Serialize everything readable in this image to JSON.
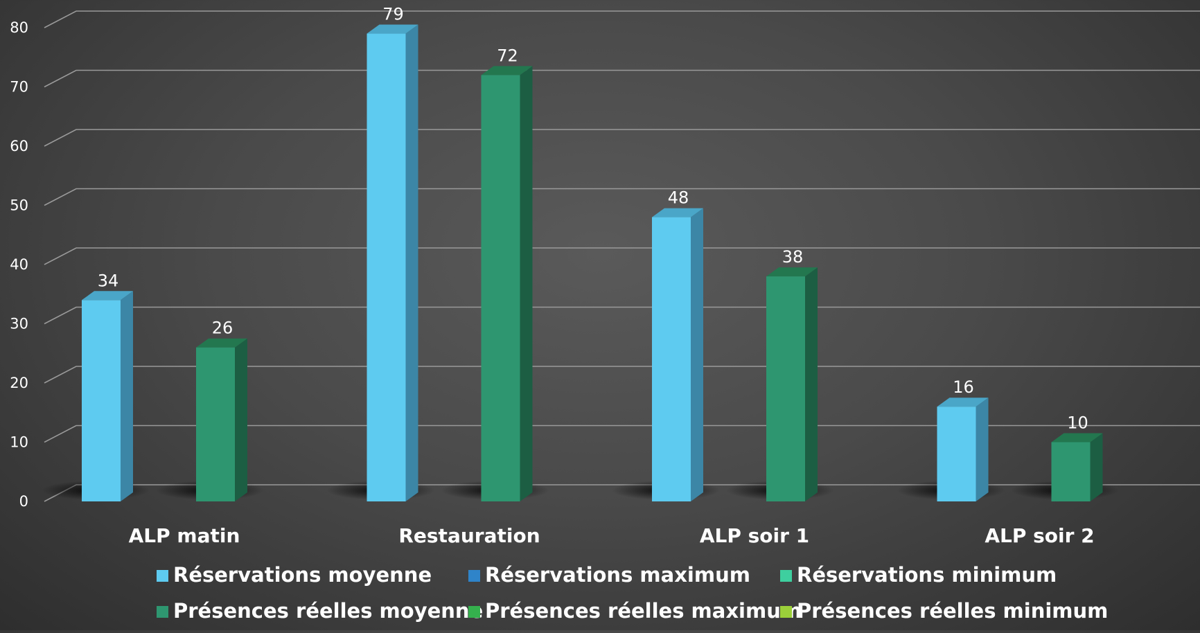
{
  "chart_data": {
    "type": "bar",
    "categories": [
      "ALP matin",
      "Restauration",
      "ALP soir 1",
      "ALP soir 2"
    ],
    "series": [
      {
        "name": "Réservations moyenne",
        "values": [
          34,
          79,
          48,
          16
        ],
        "color": "#5ecbf0",
        "side_color": "#3c86a6",
        "top_color": "#4aa6c8"
      },
      {
        "name": "Réservations maximum",
        "values": [
          null,
          null,
          null,
          null
        ],
        "color": "#2f84c9"
      },
      {
        "name": "Réservations minimum",
        "values": [
          null,
          null,
          null,
          null
        ],
        "color": "#3ecf9f"
      },
      {
        "name": "Présences réelles moyenne",
        "values": [
          26,
          72,
          38,
          10
        ],
        "color": "#2e9670",
        "side_color": "#1c5e43",
        "top_color": "#23774f"
      },
      {
        "name": "Présences réelles maximum",
        "values": [
          null,
          null,
          null,
          null
        ],
        "color": "#35b04d"
      },
      {
        "name": "Présences réelles minimum",
        "values": [
          null,
          null,
          null,
          null
        ],
        "color": "#9bd03a"
      }
    ],
    "y_ticks": [
      "0",
      "10",
      "20",
      "30",
      "40",
      "50",
      "60",
      "70",
      "80"
    ],
    "ylim": [
      0,
      80
    ],
    "grid": true,
    "legend_position": "bottom",
    "style": "3d-column",
    "title": "",
    "xlabel": "",
    "ylabel": ""
  }
}
